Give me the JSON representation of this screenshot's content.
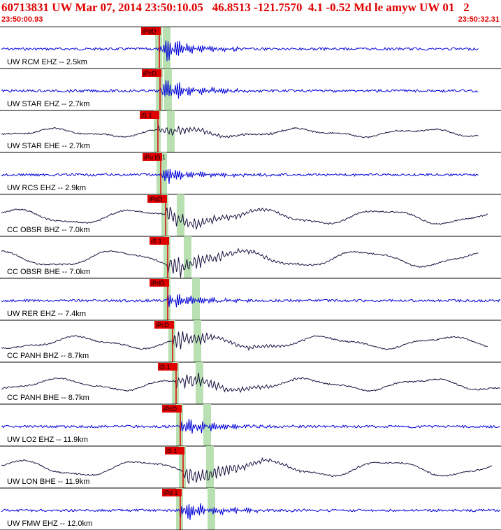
{
  "header": {
    "title": "60713831 UW Mar 07, 2014 23:50:10.05   46.8513 -121.7570  4.1 -0.52 Md le amyw UW 01   2",
    "time_start": "23:50:00.93",
    "time_end": "23:50:32.31"
  },
  "colors": {
    "header_text": "#e00000",
    "vertical_trace": "#0000d8",
    "horizontal_trace": "#1a1040",
    "pick_box": "#e00000",
    "pick_band": "#b8e0b0",
    "separator": "#000000"
  },
  "chart_data": {
    "type": "line",
    "title": "60713831 UW Mar 07, 2014 23:50:10.05   46.8513 -121.7570  4.1 -0.52 Md le amyw UW 01   2",
    "x_start": "23:50:00.93",
    "x_end": "23:50:32.31",
    "traces": [
      {
        "label": "UW RCM EHZ -- 2.5km",
        "component": "vertical",
        "pick": "iPdD"
      },
      {
        "label": "UW STAR EHZ -- 2.7km",
        "component": "vertical",
        "pick": "iPcD"
      },
      {
        "label": "UW STAR EHE -- 2.7km",
        "component": "horizontal",
        "pick": "iS 1"
      },
      {
        "label": "UW RCS EHZ -- 2.9km",
        "component": "vertical",
        "pick": "iPu iS 1"
      },
      {
        "label": "CC OBSR BHZ -- 7.0km",
        "component": "horizontal",
        "pick": "iPdD"
      },
      {
        "label": "CC OBSR BHE -- 7.0km",
        "component": "horizontal",
        "pick": "iS 1"
      },
      {
        "label": "UW RER EHZ -- 7.4km",
        "component": "vertical",
        "pick": "iPdD"
      },
      {
        "label": "CC PANH BHZ -- 8.7km",
        "component": "horizontal",
        "pick": "iPcD"
      },
      {
        "label": "CC PANH BHE -- 8.7km",
        "component": "horizontal",
        "pick": "iS 1"
      },
      {
        "label": "UW LO2 EHZ -- 11.9km",
        "component": "vertical",
        "pick": "iPcD"
      },
      {
        "label": "UW LON BHE -- 11.9km",
        "component": "horizontal",
        "pick": "iS 1"
      },
      {
        "label": "UW FMW EHZ -- 12.0km",
        "component": "vertical",
        "pick": "iPd 1"
      }
    ]
  }
}
